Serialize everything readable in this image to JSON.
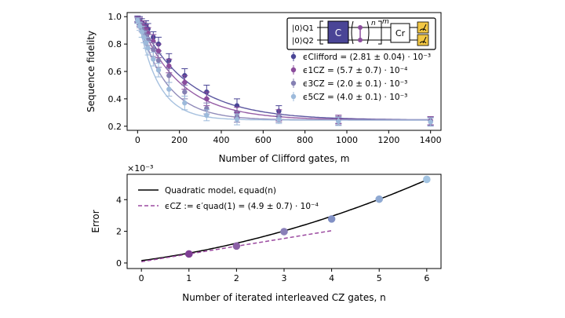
{
  "chart_data": [
    {
      "type": "scatter",
      "xlabel": "Number of Clifford gates, m",
      "ylabel": "Sequence fidelity",
      "xlim": [
        -50,
        1450
      ],
      "ylim": [
        0.17,
        1.03
      ],
      "xticks": [
        0,
        200,
        400,
        600,
        800,
        1000,
        1200,
        1400
      ],
      "yticks": [
        0.2,
        0.4,
        0.6,
        0.8,
        1.0
      ],
      "ytick_labels": [
        "0.2",
        "0.4",
        "0.6",
        "0.8",
        "1.0"
      ],
      "legend_position": "top-right",
      "inset_circuit": {
        "q1_label": "|0⟩Q1",
        "q2_label": "|0⟩Q2",
        "c_label": "C",
        "cr_label": "Cr",
        "n_label": "n",
        "m_label": "m"
      },
      "series": [
        {
          "name": "ϵClifford = (2.81 ± 0.04) · 10⁻³",
          "color": "#4a4596",
          "fit": {
            "A": 0.76,
            "B": 0.245,
            "p": 0.99578
          },
          "x": [
            0,
            10,
            20,
            30,
            40,
            50,
            75,
            100,
            150,
            225,
            330,
            475,
            675,
            960,
            1400
          ],
          "y": [
            0.985,
            0.97,
            0.955,
            0.94,
            0.93,
            0.91,
            0.85,
            0.8,
            0.68,
            0.57,
            0.45,
            0.35,
            0.31,
            0.25,
            0.24
          ],
          "err": [
            0.02,
            0.03,
            0.03,
            0.03,
            0.04,
            0.04,
            0.04,
            0.05,
            0.05,
            0.05,
            0.05,
            0.05,
            0.04,
            0.03,
            0.03
          ]
        },
        {
          "name": "ϵ1CZ = (5.7 ± 0.7) · 10⁻⁴",
          "color": "#8b4c9c",
          "fit": {
            "A": 0.76,
            "B": 0.245,
            "p": 0.99493
          },
          "x": [
            0,
            10,
            20,
            30,
            40,
            50,
            75,
            100,
            150,
            225,
            330,
            475,
            675,
            960,
            1400
          ],
          "y": [
            0.98,
            0.96,
            0.94,
            0.92,
            0.9,
            0.88,
            0.82,
            0.75,
            0.64,
            0.52,
            0.4,
            0.3,
            0.28,
            0.25,
            0.24
          ],
          "err": [
            0.02,
            0.03,
            0.03,
            0.04,
            0.04,
            0.04,
            0.05,
            0.05,
            0.05,
            0.05,
            0.05,
            0.04,
            0.04,
            0.03,
            0.03
          ]
        },
        {
          "name": "ϵ3CZ = (2.0 ± 0.1) · 10⁻³",
          "color": "#8580b3",
          "fit": {
            "A": 0.76,
            "B": 0.245,
            "p": 0.99247
          },
          "x": [
            0,
            10,
            20,
            30,
            40,
            50,
            75,
            100,
            150,
            225,
            330,
            475,
            675,
            960,
            1400
          ],
          "y": [
            0.975,
            0.95,
            0.92,
            0.89,
            0.86,
            0.83,
            0.76,
            0.68,
            0.57,
            0.45,
            0.33,
            0.27,
            0.26,
            0.24,
            0.235
          ],
          "err": [
            0.02,
            0.03,
            0.03,
            0.04,
            0.04,
            0.04,
            0.05,
            0.05,
            0.05,
            0.05,
            0.04,
            0.04,
            0.03,
            0.03,
            0.03
          ]
        },
        {
          "name": "ϵ5CZ = (4.0 ± 0.1) · 10⁻³",
          "color": "#9dbadb",
          "fit": {
            "A": 0.76,
            "B": 0.245,
            "p": 0.98957
          },
          "x": [
            0,
            10,
            20,
            30,
            40,
            50,
            75,
            100,
            150,
            225,
            330,
            475,
            675,
            960,
            1400
          ],
          "y": [
            0.97,
            0.93,
            0.89,
            0.85,
            0.81,
            0.77,
            0.69,
            0.61,
            0.47,
            0.37,
            0.28,
            0.25,
            0.25,
            0.235,
            0.23
          ],
          "err": [
            0.02,
            0.03,
            0.04,
            0.04,
            0.04,
            0.05,
            0.05,
            0.05,
            0.05,
            0.05,
            0.04,
            0.04,
            0.03,
            0.03,
            0.03
          ]
        }
      ]
    },
    {
      "type": "scatter",
      "xlabel": "Number of iterated interleaved CZ gates, n",
      "ylabel": "Error",
      "y_multiplier": "×10⁻³",
      "xlim": [
        -0.3,
        6.3
      ],
      "ylim": [
        -0.35,
        5.6
      ],
      "xticks": [
        0,
        1,
        2,
        3,
        4,
        5,
        6
      ],
      "yticks": [
        0,
        2,
        4
      ],
      "legend_position": "top-left",
      "quadratic_model": {
        "name": "Quadratic model, ϵquad(n)",
        "color": "#000000",
        "coeffs": [
          0.15,
          0.4,
          0.075
        ],
        "x_range": [
          0,
          6
        ]
      },
      "linear_slope": {
        "name": "ϵCZ := ϵ′quad(1) = (4.9 ± 0.7) · 10⁻⁴",
        "color": "#9b4aa0",
        "intercept": 0.08,
        "slope": 0.49,
        "x_range": [
          0,
          4
        ]
      },
      "points": {
        "x": [
          1,
          2,
          3,
          4,
          5,
          6
        ],
        "y": [
          0.57,
          1.07,
          1.98,
          2.78,
          4.03,
          5.28
        ],
        "colors": [
          "#7f3f95",
          "#8b5fa6",
          "#8a7fb8",
          "#8190c4",
          "#8fa9d2",
          "#a3c4e2"
        ]
      }
    }
  ]
}
